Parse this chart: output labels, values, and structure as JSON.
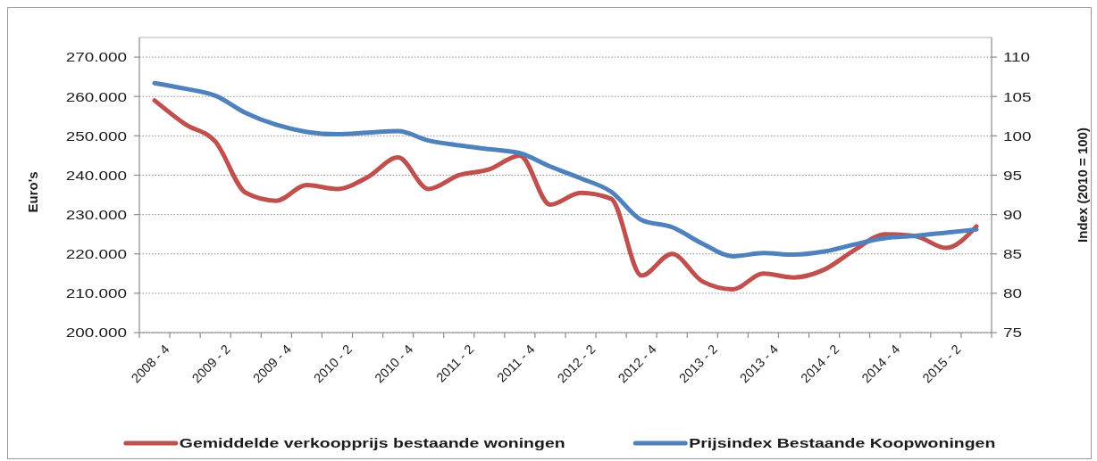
{
  "chart_data": {
    "type": "line",
    "categories": [
      "2008 - 4",
      null,
      "2009 - 2",
      null,
      "2009 - 4",
      null,
      "2010 - 2",
      null,
      "2010 - 4",
      null,
      "2011 - 2",
      null,
      "2011 - 4",
      null,
      "2012 - 2",
      null,
      "2012 - 4",
      null,
      "2013 - 2",
      null,
      "2013 - 4",
      null,
      "2014 - 2",
      null,
      "2014 - 4",
      null,
      "2015 - 2",
      null
    ],
    "ylabel": "Euro's",
    "y2label": "Index (2010 = 100)",
    "ylim": [
      200000,
      275000
    ],
    "yticks": [
      {
        "value": 200000,
        "label": "200.000"
      },
      {
        "value": 210000,
        "label": "210.000"
      },
      {
        "value": 220000,
        "label": "220.000"
      },
      {
        "value": 230000,
        "label": "230.000"
      },
      {
        "value": 240000,
        "label": "240.000"
      },
      {
        "value": 250000,
        "label": "250.000"
      },
      {
        "value": 260000,
        "label": "260.000"
      },
      {
        "value": 270000,
        "label": "270.000"
      }
    ],
    "y2lim": [
      75,
      112.5
    ],
    "y2ticks": [
      75,
      80,
      85,
      90,
      95,
      100,
      105,
      110
    ],
    "grid": "y",
    "legend": "bottom",
    "line_style": "solid",
    "series": [
      {
        "name": "Gemiddelde verkoopprijs bestaande woningen",
        "color": "#c0504d",
        "values": [
          259000,
          253000,
          248500,
          235500,
          233500,
          237500,
          236500,
          239500,
          244500,
          236500,
          240000,
          241500,
          245000,
          232500,
          235500,
          234000,
          214500,
          220000,
          213000,
          211000,
          215000,
          214000,
          216000,
          221000,
          225000,
          224500,
          221500,
          227000
        ]
      },
      {
        "name": "Prijsindex Bestaande Koopwoningen",
        "color": "#4f81bd",
        "axis": "y2",
        "values": [
          106.7,
          106.0,
          105.1,
          102.9,
          101.4,
          100.5,
          100.2,
          100.4,
          100.6,
          99.4,
          98.8,
          98.3,
          97.8,
          96.1,
          94.6,
          92.9,
          89.3,
          88.4,
          86.3,
          84.7,
          85.1,
          84.9,
          85.3,
          86.2,
          87.0,
          87.3,
          87.7,
          88.1
        ]
      }
    ]
  }
}
